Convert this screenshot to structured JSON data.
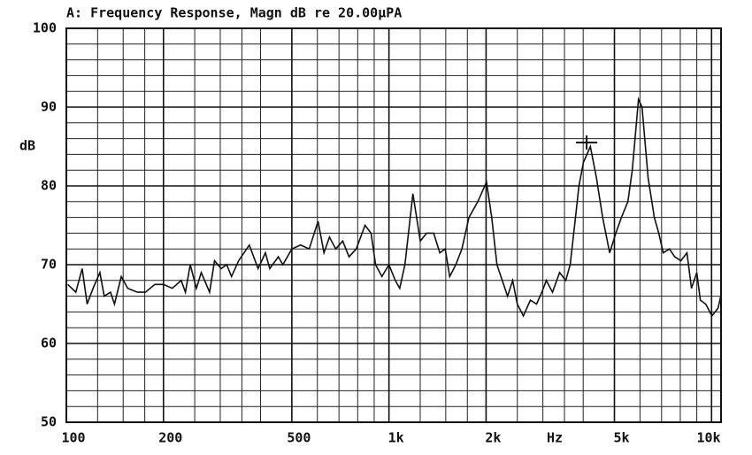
{
  "chart_data": {
    "type": "line",
    "title": "A: Frequency Response, Magn dB re 20.00µPA",
    "y_label": "dB",
    "x_label": "Hz",
    "x": [
      101,
      107,
      112,
      116,
      121,
      127,
      131,
      137,
      141,
      148,
      155,
      166,
      176,
      188,
      200,
      213,
      227,
      234,
      242,
      253,
      262,
      278,
      288,
      302,
      314,
      325,
      342,
      369,
      393,
      414,
      427,
      454,
      469,
      500,
      532,
      566,
      603,
      629,
      654,
      684,
      719,
      752,
      792,
      843,
      880,
      909,
      951,
      1000,
      1046,
      1080,
      1121,
      1186,
      1251,
      1308,
      1376,
      1437,
      1494,
      1543,
      1611,
      1683,
      1770,
      1886,
      2006,
      2082,
      2162,
      2245,
      2331,
      2419,
      2499,
      2611,
      2744,
      2868,
      2979,
      3075,
      3214,
      3380,
      3532,
      3645,
      3762,
      3882,
      4007,
      4211,
      4399,
      4597,
      4832,
      5049,
      5256,
      5502,
      5678,
      5935,
      6089,
      6360,
      6646,
      6862,
      7085,
      7404,
      7685,
      8032,
      8393,
      8665,
      9002,
      9231,
      9593,
      10024,
      10479,
      10680
    ],
    "values": [
      67.5,
      66.5,
      69.5,
      65,
      67,
      69,
      66,
      66.5,
      65,
      68.5,
      67,
      66.5,
      66.5,
      67.5,
      67.5,
      67,
      68,
      66.5,
      70,
      67,
      69,
      66.5,
      70.5,
      69.5,
      70,
      68.5,
      70.5,
      72.5,
      69.5,
      71.5,
      69.5,
      71,
      70,
      72,
      72.5,
      72,
      75.5,
      71.5,
      73.5,
      72,
      73,
      71,
      72,
      75,
      74,
      70,
      68.5,
      70,
      68,
      67,
      70,
      79,
      73,
      74,
      74,
      71.5,
      72,
      68.5,
      70,
      72,
      76,
      78,
      80.5,
      76,
      70,
      68,
      66,
      68,
      65,
      63.5,
      65.5,
      65,
      66.5,
      68,
      66.5,
      69,
      68,
      70,
      75,
      80,
      83,
      85,
      81,
      76,
      71.5,
      74,
      76,
      78,
      82,
      91,
      90,
      81,
      76,
      74,
      71.5,
      72,
      71,
      70.5,
      71.5,
      67,
      69,
      65.5,
      65,
      63.5,
      64.5,
      66
    ],
    "color": "#111111",
    "log_x": true,
    "xlim": [
      100,
      10700
    ],
    "xticks": [
      100,
      200,
      500,
      {
        "value": 1000,
        "label": "1k"
      },
      {
        "value": 2000,
        "label": "2k"
      },
      {
        "value": 5000,
        "label": "5k"
      },
      {
        "value": 10000,
        "label": "10k"
      }
    ],
    "x_minor_ticks": [
      125,
      150,
      175,
      250,
      300,
      350,
      400,
      600,
      700,
      800,
      900,
      1250,
      1500,
      1750,
      2500,
      3000,
      3500,
      4000,
      6000,
      7000,
      8000,
      9000
    ],
    "ylim": [
      50,
      100
    ],
    "yticks": [
      50,
      60,
      70,
      80,
      90,
      100
    ],
    "y_minor_ticks": [
      52,
      54,
      56,
      58,
      62,
      64,
      66,
      68,
      72,
      74,
      76,
      78,
      82,
      84,
      86,
      88,
      92,
      94,
      96,
      98
    ],
    "grid": true,
    "cursor": {
      "x": 4100,
      "y": 85.5
    }
  }
}
